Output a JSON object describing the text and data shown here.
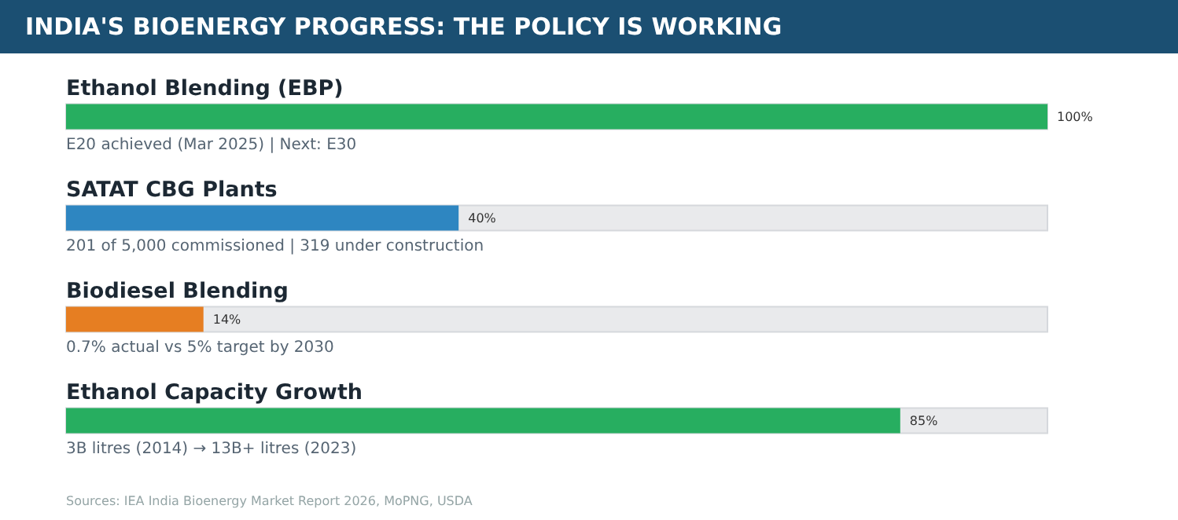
{
  "chart_data": {
    "type": "bar",
    "orientation": "horizontal",
    "title": "INDIA'S BIOENERGY PROGRESS: THE POLICY IS WORKING",
    "categories": [
      "Ethanol Blending (EBP)",
      "SATAT CBG Plants",
      "Biodiesel Blending",
      "Ethanol Capacity Growth"
    ],
    "values": [
      100,
      40,
      14,
      85
    ],
    "colors": [
      "#27ae60",
      "#2e86c1",
      "#e67e22",
      "#27ae60"
    ],
    "value_labels": [
      "100%",
      "40%",
      "14%",
      "85%"
    ],
    "xlim": [
      0,
      100
    ],
    "tick_labels": "y",
    "grid": false,
    "annotations": [
      "E20 achieved (Mar 2025) | Next: E30",
      "201 of 5,000 commissioned | 319 under construction",
      "0.7% actual vs 5% target by 2030",
      "3B litres (2014) → 13B+ litres (2023)",
      "Sources: IEA India Bioenergy Market Report 2026, MoPNG, USDA"
    ]
  }
}
